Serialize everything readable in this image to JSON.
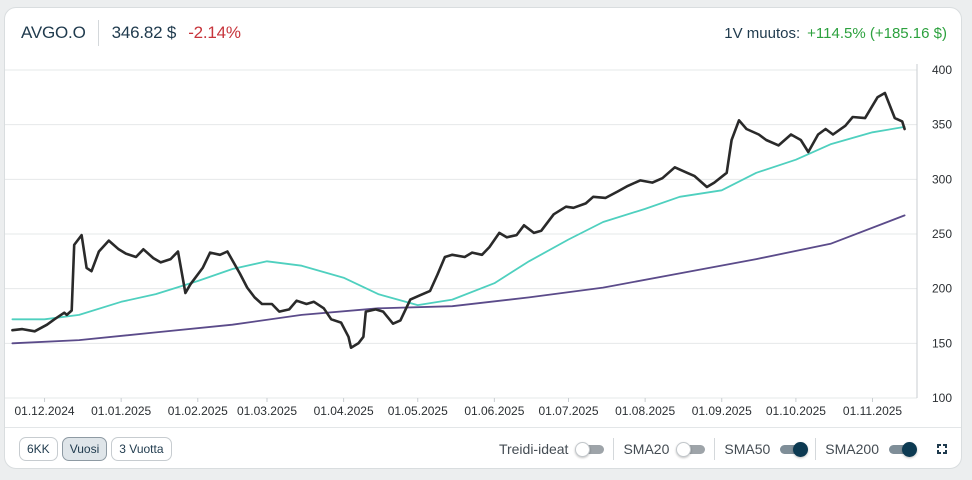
{
  "header": {
    "ticker": "AVGO.O",
    "price": "346.82 $",
    "change_pct": "-2.14%",
    "change_label": "1V muutos:",
    "change_value": "+114.5% (+185.16 $)"
  },
  "footer": {
    "ranges": [
      {
        "label": "6KK",
        "active": false
      },
      {
        "label": "Vuosi",
        "active": true
      },
      {
        "label": "3 Vuotta",
        "active": false
      }
    ],
    "toggles": [
      {
        "label": "Treidi-ideat",
        "on": false
      },
      {
        "label": "SMA20",
        "on": false
      },
      {
        "label": "SMA50",
        "on": true
      },
      {
        "label": "SMA200",
        "on": true
      }
    ],
    "expand_icon": "expand-icon"
  },
  "colors": {
    "price_line": "#2a2a2a",
    "sma50": "#4fd0bf",
    "sma200": "#5b4b8a",
    "negative": "#c7353c",
    "positive": "#2ca13e"
  },
  "chart_data": {
    "type": "line",
    "x_start": "2024-11-15",
    "x_end": "2025-11-19",
    "ylim": [
      100,
      400
    ],
    "yticks": [
      100,
      150,
      200,
      250,
      300,
      350,
      400
    ],
    "xticks": [
      {
        "date": "2024-12-01",
        "label": "01.12.2024"
      },
      {
        "date": "2025-01-01",
        "label": "01.01.2025"
      },
      {
        "date": "2025-02-01",
        "label": "01.02.2025"
      },
      {
        "date": "2025-03-01",
        "label": "01.03.2025"
      },
      {
        "date": "2025-04-01",
        "label": "01.04.2025"
      },
      {
        "date": "2025-05-01",
        "label": "01.05.2025"
      },
      {
        "date": "2025-06-01",
        "label": "01.06.2025"
      },
      {
        "date": "2025-07-01",
        "label": "01.07.2025"
      },
      {
        "date": "2025-08-01",
        "label": "01.08.2025"
      },
      {
        "date": "2025-09-01",
        "label": "01.09.2025"
      },
      {
        "date": "2025-10-01",
        "label": "01.10.2025"
      },
      {
        "date": "2025-11-01",
        "label": "01.11.2025"
      }
    ],
    "grid": true,
    "series": [
      {
        "key": "price",
        "x": [
          "2024-11-18",
          "2024-11-22",
          "2024-11-27",
          "2024-12-02",
          "2024-12-05",
          "2024-12-09",
          "2024-12-10",
          "2024-12-12",
          "2024-12-13",
          "2024-12-16",
          "2024-12-18",
          "2024-12-20",
          "2024-12-23",
          "2024-12-27",
          "2024-12-31",
          "2025-01-03",
          "2025-01-07",
          "2025-01-10",
          "2025-01-14",
          "2025-01-17",
          "2025-01-21",
          "2025-01-24",
          "2025-01-27",
          "2025-01-29",
          "2025-02-03",
          "2025-02-06",
          "2025-02-10",
          "2025-02-13",
          "2025-02-18",
          "2025-02-21",
          "2025-02-24",
          "2025-02-27",
          "2025-03-03",
          "2025-03-06",
          "2025-03-10",
          "2025-03-13",
          "2025-03-17",
          "2025-03-20",
          "2025-03-24",
          "2025-03-27",
          "2025-03-31",
          "2025-04-03",
          "2025-04-04",
          "2025-04-07",
          "2025-04-09",
          "2025-04-10",
          "2025-04-14",
          "2025-04-17",
          "2025-04-21",
          "2025-04-24",
          "2025-04-28",
          "2025-05-02",
          "2025-05-06",
          "2025-05-09",
          "2025-05-12",
          "2025-05-15",
          "2025-05-20",
          "2025-05-23",
          "2025-05-27",
          "2025-05-30",
          "2025-06-03",
          "2025-06-06",
          "2025-06-10",
          "2025-06-13",
          "2025-06-17",
          "2025-06-20",
          "2025-06-25",
          "2025-06-30",
          "2025-07-03",
          "2025-07-08",
          "2025-07-11",
          "2025-07-16",
          "2025-07-21",
          "2025-07-25",
          "2025-07-30",
          "2025-08-04",
          "2025-08-08",
          "2025-08-13",
          "2025-08-18",
          "2025-08-21",
          "2025-08-26",
          "2025-08-29",
          "2025-09-03",
          "2025-09-05",
          "2025-09-08",
          "2025-09-11",
          "2025-09-16",
          "2025-09-19",
          "2025-09-24",
          "2025-09-29",
          "2025-10-03",
          "2025-10-06",
          "2025-10-10",
          "2025-10-13",
          "2025-10-16",
          "2025-10-21",
          "2025-10-24",
          "2025-10-29",
          "2025-11-03",
          "2025-11-06",
          "2025-11-10",
          "2025-11-13",
          "2025-11-14"
        ],
        "y": [
          162,
          163,
          161,
          167,
          172,
          178,
          176,
          180,
          240,
          249,
          219,
          216,
          234,
          244,
          236,
          232,
          229,
          236,
          228,
          224,
          227,
          234,
          196,
          204,
          219,
          233,
          231,
          234,
          214,
          201,
          192,
          186,
          186,
          179,
          181,
          189,
          186,
          188,
          182,
          172,
          169,
          156,
          146,
          150,
          156,
          179,
          181,
          179,
          168,
          171,
          190,
          194,
          198,
          213,
          229,
          231,
          229,
          233,
          231,
          238,
          251,
          247,
          249,
          258,
          251,
          253,
          268,
          275,
          274,
          278,
          284,
          283,
          289,
          294,
          299,
          297,
          301,
          311,
          306,
          303,
          293,
          297,
          306,
          336,
          354,
          346,
          341,
          336,
          331,
          341,
          336,
          325,
          341,
          346,
          341,
          349,
          357,
          356,
          375,
          379,
          356,
          353,
          346
        ]
      },
      {
        "key": "sma50",
        "x": [
          "2024-11-18",
          "2024-12-01",
          "2024-12-15",
          "2025-01-01",
          "2025-01-15",
          "2025-02-01",
          "2025-02-15",
          "2025-03-01",
          "2025-03-15",
          "2025-04-01",
          "2025-04-15",
          "2025-05-01",
          "2025-05-15",
          "2025-06-01",
          "2025-06-15",
          "2025-07-01",
          "2025-07-15",
          "2025-08-01",
          "2025-08-15",
          "2025-09-01",
          "2025-09-15",
          "2025-10-01",
          "2025-10-15",
          "2025-11-01",
          "2025-11-14"
        ],
        "y": [
          172,
          172,
          176,
          188,
          195,
          207,
          218,
          225,
          221,
          210,
          195,
          185,
          190,
          205,
          225,
          245,
          261,
          273,
          284,
          290,
          306,
          318,
          332,
          343,
          348
        ]
      },
      {
        "key": "sma200",
        "x": [
          "2024-11-18",
          "2024-12-15",
          "2025-01-15",
          "2025-02-15",
          "2025-03-15",
          "2025-04-15",
          "2025-05-15",
          "2025-06-15",
          "2025-07-15",
          "2025-08-15",
          "2025-09-15",
          "2025-10-15",
          "2025-11-14"
        ],
        "y": [
          150,
          153,
          160,
          167,
          176,
          182,
          184,
          192,
          201,
          214,
          227,
          241,
          267
        ]
      }
    ]
  }
}
